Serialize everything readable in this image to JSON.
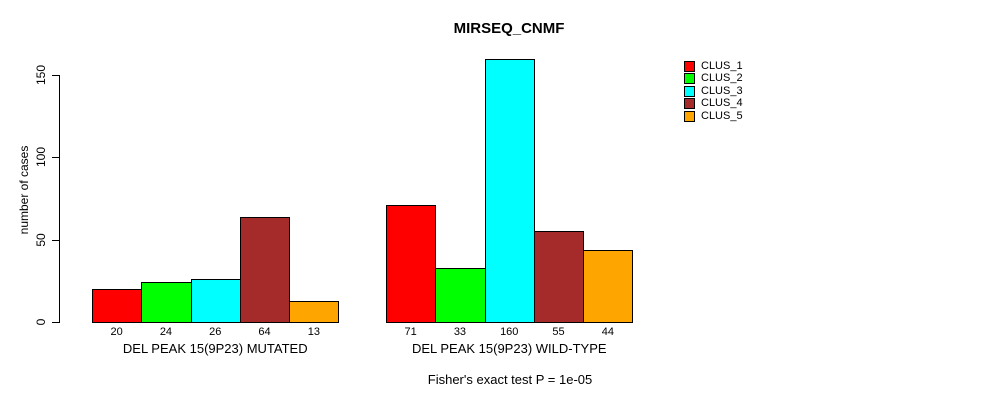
{
  "title": "MIRSEQ_CNMF",
  "footer": "Fisher's exact test P = 1e-05",
  "chart_data": {
    "type": "bar",
    "title": "MIRSEQ_CNMF",
    "xlabel": "",
    "ylabel": "number of cases",
    "ylim": [
      0,
      160
    ],
    "yticks": [
      0,
      50,
      100,
      150
    ],
    "grid": false,
    "legend_position": "right",
    "categories": [
      "DEL PEAK 15(9P23) MUTATED",
      "DEL PEAK 15(9P23) WILD-TYPE"
    ],
    "series": [
      {
        "name": "CLUS_1",
        "color": "#FF0000",
        "values": [
          20,
          71
        ]
      },
      {
        "name": "CLUS_2",
        "color": "#00FF00",
        "values": [
          24,
          33
        ]
      },
      {
        "name": "CLUS_3",
        "color": "#00FFFF",
        "values": [
          26,
          160
        ]
      },
      {
        "name": "CLUS_4",
        "color": "#A52A2A",
        "values": [
          64,
          55
        ]
      },
      {
        "name": "CLUS_5",
        "color": "#FFA500",
        "values": [
          13,
          44
        ]
      }
    ],
    "bar_value_labels_shown": true,
    "annotation": "Fisher's exact test P = 1e-05"
  },
  "colors": {
    "axis": "#000000",
    "text": "#000000",
    "background": "#FFFFFF"
  }
}
